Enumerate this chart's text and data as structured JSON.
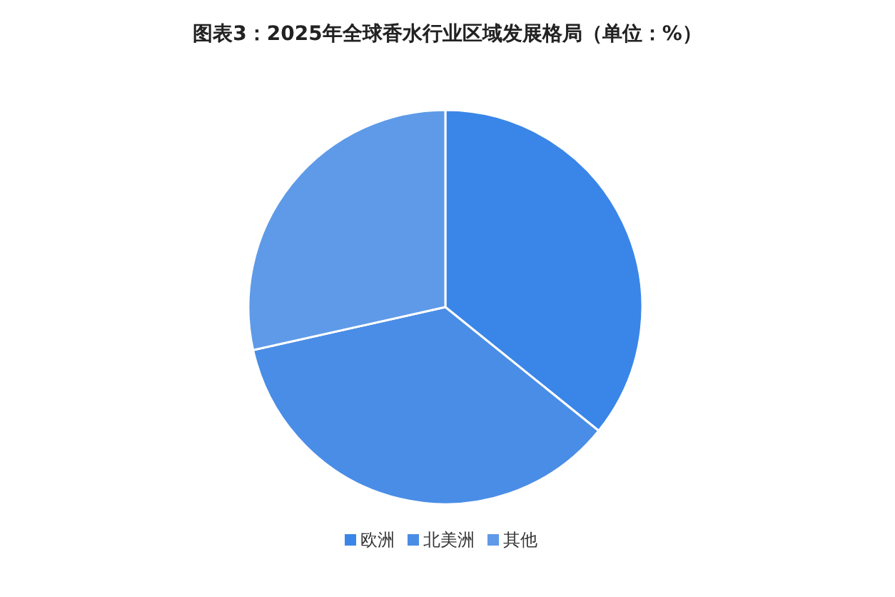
{
  "chart_data": {
    "type": "pie",
    "title": "图表3：2025年全球香水行业区域发展格局（单位：%）",
    "categories": [
      "欧洲",
      "北美洲",
      "其他"
    ],
    "values": [
      35.8,
      35.7,
      28.5
    ],
    "colors": [
      "#3a86e8",
      "#4a8de6",
      "#5e9ae8"
    ],
    "legend": "bottom"
  }
}
